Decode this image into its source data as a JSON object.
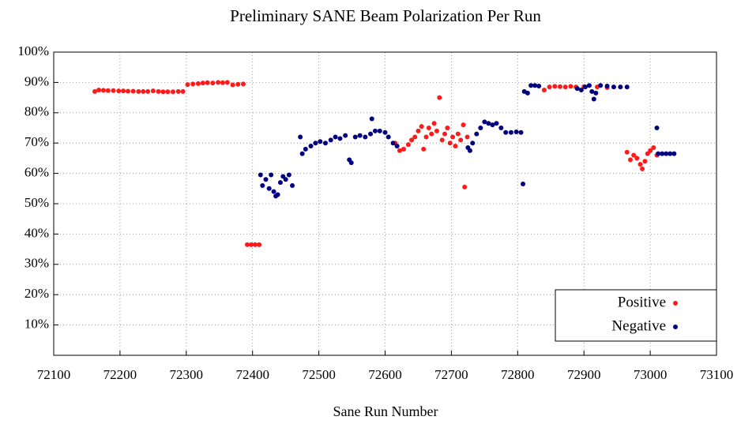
{
  "chart_data": {
    "type": "scatter",
    "title": "Preliminary SANE Beam Polarization Per Run",
    "xlabel": "Sane Run Number",
    "xlim": [
      72100,
      73100
    ],
    "xticks": [
      72100,
      72200,
      72300,
      72400,
      72500,
      72600,
      72700,
      72800,
      72900,
      73000,
      73100
    ],
    "ylim": [
      0,
      100
    ],
    "yticks": [
      {
        "value": 10,
        "label": "10%"
      },
      {
        "value": 20,
        "label": "20%"
      },
      {
        "value": 30,
        "label": "30%"
      },
      {
        "value": 40,
        "label": "40%"
      },
      {
        "value": 50,
        "label": "50%"
      },
      {
        "value": 60,
        "label": "60%"
      },
      {
        "value": 70,
        "label": "70%"
      },
      {
        "value": 80,
        "label": "80%"
      },
      {
        "value": 90,
        "label": "90%"
      },
      {
        "value": 100,
        "label": "100%"
      }
    ],
    "grid": true,
    "legend": "lower right",
    "series": [
      {
        "name": "Positive",
        "color": "#ff1a1a",
        "x": [
          72162,
          72168,
          72175,
          72182,
          72190,
          72198,
          72205,
          72212,
          72220,
          72228,
          72235,
          72242,
          72250,
          72258,
          72265,
          72272,
          72280,
          72288,
          72295,
          72302,
          72310,
          72318,
          72325,
          72332,
          72340,
          72348,
          72355,
          72362,
          72370,
          72378,
          72386,
          72392,
          72398,
          72404,
          72410,
          72615,
          72622,
          72628,
          72635,
          72640,
          72645,
          72650,
          72655,
          72658,
          72662,
          72666,
          72670,
          72674,
          72678,
          72682,
          72686,
          72690,
          72694,
          72698,
          72702,
          72706,
          72710,
          72714,
          72718,
          72720,
          72724,
          72840,
          72848,
          72856,
          72864,
          72872,
          72880,
          72888,
          72900,
          72920,
          72935,
          72965,
          72970,
          72975,
          72980,
          72985,
          72988,
          72992,
          72996,
          73000,
          73005,
          73010
        ],
        "values": [
          87,
          87.5,
          87.4,
          87.3,
          87.3,
          87.2,
          87.2,
          87.1,
          87.1,
          87,
          87,
          87,
          87.2,
          87,
          86.9,
          86.9,
          86.9,
          87,
          87,
          89.3,
          89.5,
          89.6,
          89.8,
          89.9,
          89.8,
          90,
          89.9,
          90,
          89.2,
          89.4,
          89.5,
          36.5,
          36.5,
          36.5,
          36.5,
          70,
          67.5,
          68,
          69.5,
          71,
          72,
          74,
          75.5,
          68,
          72,
          75,
          73,
          76.5,
          74,
          85,
          71,
          73,
          75,
          70,
          72,
          69,
          73,
          71,
          76,
          55.5,
          72,
          87.5,
          88.5,
          88.7,
          88.6,
          88.5,
          88.7,
          88.5,
          88.6,
          88.5,
          88.3,
          67,
          64.5,
          66,
          65,
          63,
          61.5,
          64,
          66.5,
          67.5,
          68.5,
          66
        ]
      },
      {
        "name": "Negative",
        "color": "#000080",
        "x": [
          72412,
          72415,
          72420,
          72425,
          72428,
          72432,
          72435,
          72438,
          72442,
          72446,
          72450,
          72455,
          72460,
          72472,
          72475,
          72480,
          72488,
          72495,
          72502,
          72510,
          72518,
          72525,
          72532,
          72540,
          72546,
          72549,
          72555,
          72562,
          72570,
          72578,
          72580,
          72585,
          72592,
          72600,
          72605,
          72612,
          72618,
          72725,
          72728,
          72732,
          72738,
          72744,
          72750,
          72756,
          72762,
          72768,
          72775,
          72782,
          72790,
          72798,
          72805,
          72808,
          72810,
          72815,
          72820,
          72826,
          72832,
          72890,
          72896,
          72902,
          72908,
          72912,
          72915,
          72918,
          72925,
          72935,
          72945,
          72955,
          72965,
          73010,
          73012,
          73018,
          73024,
          73030,
          73036
        ],
        "values": [
          59.5,
          56,
          58,
          55,
          59.5,
          54,
          52.5,
          53,
          57,
          59,
          58,
          59.5,
          56,
          72,
          66.5,
          68,
          69,
          70,
          70.5,
          70,
          71,
          72,
          71.5,
          72.5,
          64.5,
          63.5,
          72,
          72.5,
          72,
          73,
          78,
          74,
          74,
          73.5,
          72,
          70,
          69,
          68.5,
          67.5,
          70,
          73,
          75,
          77,
          76.5,
          76,
          76.5,
          75,
          73.5,
          73.5,
          73.7,
          73.5,
          56.5,
          87,
          86.5,
          89,
          89,
          88.8,
          88,
          87.5,
          88.5,
          89,
          87,
          84.5,
          86.5,
          89,
          88.8,
          88.5,
          88.5,
          88.5,
          75,
          66.5,
          66.5,
          66.5,
          66.5,
          66.5
        ]
      }
    ]
  }
}
